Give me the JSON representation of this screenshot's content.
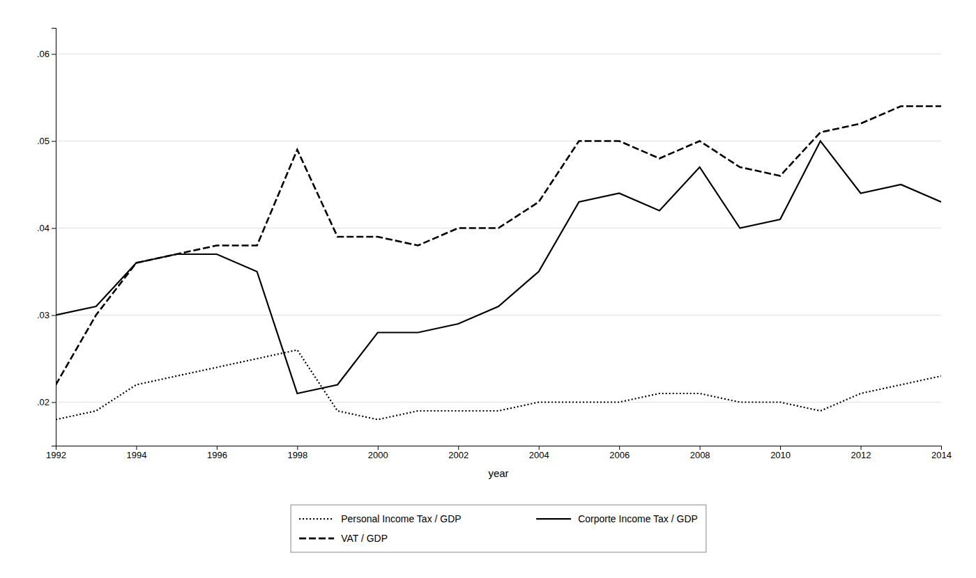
{
  "chart_data": {
    "type": "line",
    "x_label": "year",
    "x": [
      1992,
      1993,
      1994,
      1995,
      1996,
      1997,
      1998,
      1999,
      2000,
      2001,
      2002,
      2003,
      2004,
      2005,
      2006,
      2007,
      2008,
      2009,
      2010,
      2011,
      2012,
      2013,
      2014
    ],
    "series": [
      {
        "name": "Personal Income Tax / GDP",
        "color": "#000000",
        "line_style": "dotted",
        "values": [
          0.018,
          0.019,
          0.022,
          0.023,
          0.024,
          0.025,
          0.026,
          0.019,
          0.018,
          0.019,
          0.019,
          0.019,
          0.02,
          0.02,
          0.02,
          0.021,
          0.021,
          0.02,
          0.02,
          0.019,
          0.021,
          0.022,
          0.023
        ]
      },
      {
        "name": "Corporte Income Tax / GDP",
        "color": "#000000",
        "line_style": "solid",
        "values": [
          0.03,
          0.031,
          0.036,
          0.037,
          0.037,
          0.035,
          0.021,
          0.022,
          0.028,
          0.028,
          0.029,
          0.031,
          0.035,
          0.043,
          0.044,
          0.042,
          0.047,
          0.04,
          0.041,
          0.05,
          0.044,
          0.045,
          0.043
        ]
      },
      {
        "name": "VAT / GDP",
        "color": "#000000",
        "line_style": "dashed",
        "values": [
          0.022,
          0.03,
          0.036,
          0.037,
          0.038,
          0.038,
          0.049,
          0.039,
          0.039,
          0.038,
          0.04,
          0.04,
          0.043,
          0.05,
          0.05,
          0.048,
          0.05,
          0.047,
          0.046,
          0.051,
          0.052,
          0.054,
          0.054
        ]
      }
    ],
    "xlim": [
      1992,
      2014
    ],
    "xticks": [
      1992,
      1994,
      1996,
      1998,
      2000,
      2002,
      2004,
      2006,
      2008,
      2010,
      2012,
      2014
    ],
    "ylim": [
      0.015,
      0.063
    ],
    "yticks": [
      {
        "value": 0.02,
        "label": ".02"
      },
      {
        "value": 0.03,
        "label": ".03"
      },
      {
        "value": 0.04,
        "label": ".04"
      },
      {
        "value": 0.05,
        "label": ".05"
      },
      {
        "value": 0.06,
        "label": ".06"
      }
    ],
    "grid": true,
    "legend": "bottom"
  }
}
